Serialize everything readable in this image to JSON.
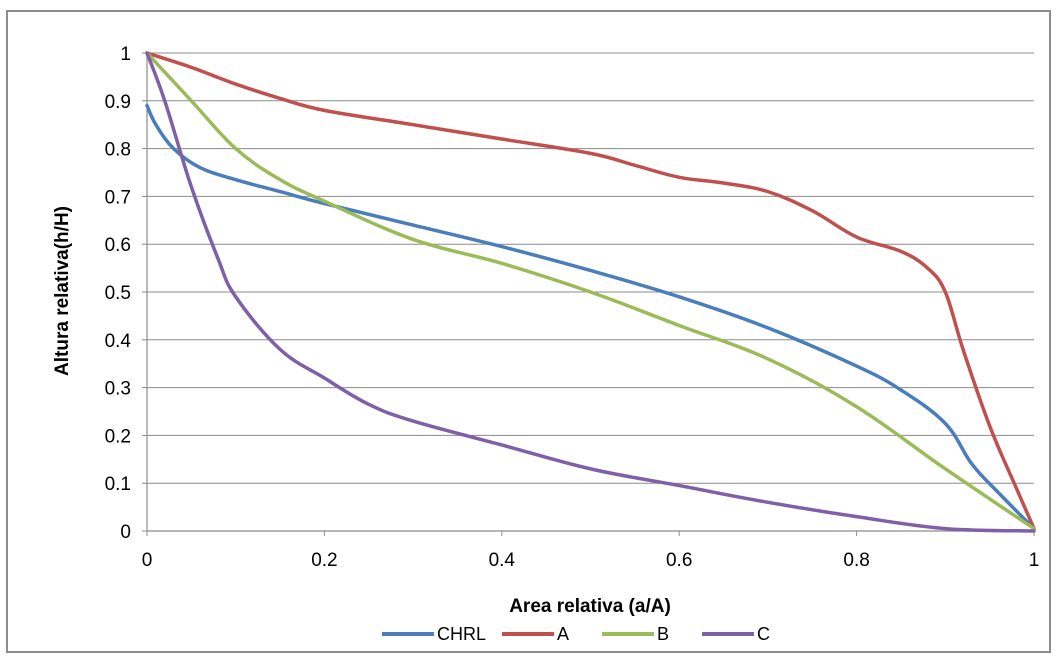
{
  "chart_data": {
    "type": "line",
    "xlabel": "Area relativa (a/A)",
    "ylabel": "Altura relativa(h/H)",
    "xlim": [
      0,
      1
    ],
    "ylim": [
      0,
      1
    ],
    "x_ticks": [
      "0",
      "0.2",
      "0.4",
      "0.6",
      "0.8",
      "1"
    ],
    "y_ticks": [
      "0",
      "0.1",
      "0.2",
      "0.3",
      "0.4",
      "0.5",
      "0.6",
      "0.7",
      "0.8",
      "0.9",
      "1"
    ],
    "grid": "horizontal",
    "legend_position": "bottom",
    "series": [
      {
        "name": "CHRL",
        "color": "#4a7ebb",
        "points": [
          [
            0,
            0.89
          ],
          [
            0.01,
            0.85
          ],
          [
            0.03,
            0.8
          ],
          [
            0.06,
            0.76
          ],
          [
            0.1,
            0.735
          ],
          [
            0.15,
            0.71
          ],
          [
            0.2,
            0.685
          ],
          [
            0.3,
            0.64
          ],
          [
            0.4,
            0.595
          ],
          [
            0.5,
            0.545
          ],
          [
            0.6,
            0.49
          ],
          [
            0.7,
            0.425
          ],
          [
            0.8,
            0.345
          ],
          [
            0.85,
            0.295
          ],
          [
            0.9,
            0.225
          ],
          [
            0.93,
            0.14
          ],
          [
            0.96,
            0.08
          ],
          [
            1.0,
            0.005
          ]
        ]
      },
      {
        "name": "A",
        "color": "#c0504d",
        "points": [
          [
            0,
            1.0
          ],
          [
            0.05,
            0.97
          ],
          [
            0.1,
            0.935
          ],
          [
            0.15,
            0.905
          ],
          [
            0.2,
            0.88
          ],
          [
            0.3,
            0.85
          ],
          [
            0.4,
            0.82
          ],
          [
            0.5,
            0.79
          ],
          [
            0.55,
            0.765
          ],
          [
            0.6,
            0.74
          ],
          [
            0.65,
            0.728
          ],
          [
            0.7,
            0.71
          ],
          [
            0.75,
            0.67
          ],
          [
            0.8,
            0.615
          ],
          [
            0.85,
            0.585
          ],
          [
            0.88,
            0.55
          ],
          [
            0.9,
            0.5
          ],
          [
            0.92,
            0.38
          ],
          [
            0.95,
            0.22
          ],
          [
            0.98,
            0.09
          ],
          [
            1.0,
            0.005
          ]
        ]
      },
      {
        "name": "B",
        "color": "#9bbb59",
        "points": [
          [
            0,
            1.0
          ],
          [
            0.05,
            0.9
          ],
          [
            0.1,
            0.8
          ],
          [
            0.15,
            0.735
          ],
          [
            0.2,
            0.69
          ],
          [
            0.3,
            0.61
          ],
          [
            0.4,
            0.56
          ],
          [
            0.5,
            0.5
          ],
          [
            0.6,
            0.43
          ],
          [
            0.7,
            0.36
          ],
          [
            0.8,
            0.26
          ],
          [
            0.9,
            0.13
          ],
          [
            1.0,
            0.005
          ]
        ]
      },
      {
        "name": "C",
        "color": "#7f5fa8",
        "points": [
          [
            0,
            1.0
          ],
          [
            0.02,
            0.9
          ],
          [
            0.05,
            0.72
          ],
          [
            0.08,
            0.57
          ],
          [
            0.1,
            0.49
          ],
          [
            0.15,
            0.38
          ],
          [
            0.2,
            0.32
          ],
          [
            0.25,
            0.265
          ],
          [
            0.3,
            0.23
          ],
          [
            0.4,
            0.18
          ],
          [
            0.5,
            0.13
          ],
          [
            0.6,
            0.095
          ],
          [
            0.7,
            0.06
          ],
          [
            0.8,
            0.03
          ],
          [
            0.9,
            0.005
          ],
          [
            1.0,
            0.0
          ]
        ]
      }
    ]
  }
}
